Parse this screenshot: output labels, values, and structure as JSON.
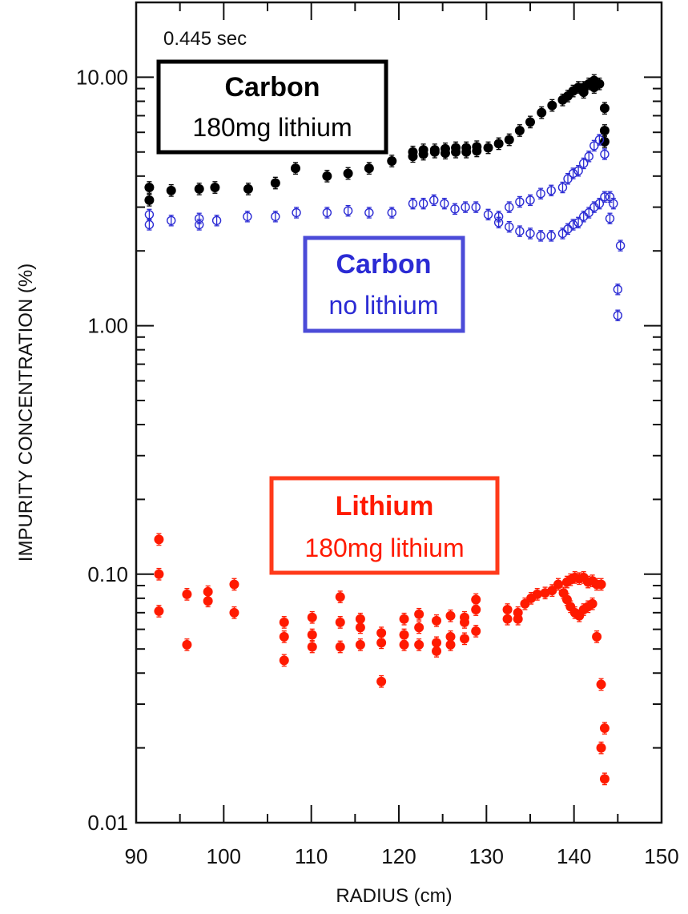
{
  "chart_data": {
    "type": "scatter",
    "title": "",
    "xlabel": "RADIUS (cm)",
    "ylabel": "IMPURITY CONCENTRATION (%)",
    "time_label": "0.445 sec",
    "xlim": [
      90,
      150
    ],
    "ylim": [
      0.01,
      20
    ],
    "yscale": "log",
    "x_ticks": [
      "90",
      "100",
      "110",
      "120",
      "130",
      "140",
      "150"
    ],
    "y_ticks": [
      "0.01",
      "0.10",
      "1.00",
      "10.00"
    ],
    "x_tick_values": [
      90,
      100,
      110,
      120,
      130,
      140,
      150
    ],
    "y_tick_values": [
      0.01,
      0.1,
      1,
      10
    ],
    "grid": false,
    "annotations": [
      {
        "title": "Carbon",
        "subtitle": "180mg lithium",
        "color": "#000000"
      },
      {
        "title": "Carbon",
        "subtitle": "no lithium",
        "color": "#2b2bd4"
      },
      {
        "title": "Lithium",
        "subtitle": "180mg lithium",
        "color": "#ff1a00"
      }
    ],
    "series": [
      {
        "color": "#000000",
        "marker": "filled-circle",
        "points": [
          [
            91.5,
            3.6
          ],
          [
            91.5,
            3.2
          ],
          [
            94,
            3.5
          ],
          [
            97.2,
            3.55
          ],
          [
            99,
            3.6
          ],
          [
            102.8,
            3.55
          ],
          [
            105.9,
            3.75
          ],
          [
            108.2,
            4.3
          ],
          [
            111.8,
            4.0
          ],
          [
            114.2,
            4.1
          ],
          [
            116.6,
            4.3
          ],
          [
            119.2,
            4.6
          ],
          [
            121.6,
            4.8
          ],
          [
            121.6,
            5.0
          ],
          [
            122.8,
            5.1
          ],
          [
            122.8,
            4.9
          ],
          [
            124.1,
            5.0
          ],
          [
            124.1,
            5.1
          ],
          [
            125.3,
            4.95
          ],
          [
            125.3,
            5.15
          ],
          [
            126.5,
            5.0
          ],
          [
            126.5,
            5.2
          ],
          [
            127.7,
            5.0
          ],
          [
            127.7,
            5.2
          ],
          [
            128.9,
            5.05
          ],
          [
            128.9,
            5.25
          ],
          [
            130.2,
            5.2
          ],
          [
            131.4,
            5.4
          ],
          [
            132.6,
            5.6
          ],
          [
            133.8,
            6.1
          ],
          [
            135,
            6.6
          ],
          [
            136.3,
            7.2
          ],
          [
            137.5,
            7.7
          ],
          [
            138.7,
            8.1
          ],
          [
            139.3,
            8.4
          ],
          [
            139.9,
            8.8
          ],
          [
            140.5,
            9.1
          ],
          [
            141.1,
            8.7
          ],
          [
            141.1,
            9.1
          ],
          [
            141.7,
            9.4
          ],
          [
            142.3,
            9.7
          ],
          [
            142.3,
            9.1
          ],
          [
            142.9,
            9.4
          ],
          [
            143.5,
            7.5
          ],
          [
            143.5,
            6.1
          ],
          [
            143.5,
            5.5
          ]
        ]
      },
      {
        "color": "#2b2bd4",
        "marker": "open-circle",
        "points": [
          [
            91.5,
            2.8
          ],
          [
            91.5,
            2.55
          ],
          [
            94,
            2.65
          ],
          [
            97.2,
            2.7
          ],
          [
            97.2,
            2.55
          ],
          [
            99.2,
            2.65
          ],
          [
            102.7,
            2.75
          ],
          [
            105.9,
            2.75
          ],
          [
            108.3,
            2.85
          ],
          [
            111.8,
            2.85
          ],
          [
            114.2,
            2.9
          ],
          [
            116.6,
            2.85
          ],
          [
            119.2,
            2.85
          ],
          [
            121.6,
            3.1
          ],
          [
            122.8,
            3.1
          ],
          [
            124,
            3.2
          ],
          [
            125.2,
            3.1
          ],
          [
            126.4,
            2.95
          ],
          [
            127.6,
            3.0
          ],
          [
            128.8,
            3.0
          ],
          [
            130.2,
            2.8
          ],
          [
            131.4,
            2.75
          ],
          [
            131.4,
            2.6
          ],
          [
            132.6,
            3.0
          ],
          [
            132.6,
            2.5
          ],
          [
            133.8,
            3.15
          ],
          [
            133.8,
            2.4
          ],
          [
            135,
            3.2
          ],
          [
            135,
            2.35
          ],
          [
            136.2,
            3.4
          ],
          [
            136.2,
            2.3
          ],
          [
            137.4,
            3.5
          ],
          [
            137.4,
            2.3
          ],
          [
            138.7,
            3.6
          ],
          [
            138.7,
            2.35
          ],
          [
            139.3,
            3.9
          ],
          [
            139.3,
            2.45
          ],
          [
            139.9,
            4.1
          ],
          [
            139.9,
            2.55
          ],
          [
            140.5,
            4.2
          ],
          [
            140.5,
            2.6
          ],
          [
            141.1,
            4.5
          ],
          [
            141.1,
            2.75
          ],
          [
            141.7,
            4.8
          ],
          [
            141.7,
            2.85
          ],
          [
            142.3,
            5.3
          ],
          [
            142.3,
            3.0
          ],
          [
            142.9,
            5.6
          ],
          [
            142.9,
            3.1
          ],
          [
            143.5,
            4.9
          ],
          [
            143.5,
            3.3
          ],
          [
            144.1,
            3.3
          ],
          [
            144.1,
            2.7
          ],
          [
            144.5,
            3.1
          ],
          [
            145,
            1.4
          ],
          [
            145,
            1.1
          ],
          [
            145.3,
            2.1
          ]
        ]
      },
      {
        "color": "#ff1a00",
        "marker": "filled-circle",
        "points": [
          [
            92.6,
            0.138
          ],
          [
            92.6,
            0.1
          ],
          [
            92.6,
            0.071
          ],
          [
            95.8,
            0.083
          ],
          [
            95.8,
            0.052
          ],
          [
            98.2,
            0.085
          ],
          [
            98.2,
            0.078
          ],
          [
            101.2,
            0.091
          ],
          [
            101.2,
            0.07
          ],
          [
            106.9,
            0.064
          ],
          [
            106.9,
            0.056
          ],
          [
            106.9,
            0.045
          ],
          [
            110.1,
            0.067
          ],
          [
            110.1,
            0.057
          ],
          [
            110.1,
            0.051
          ],
          [
            113.3,
            0.081
          ],
          [
            113.3,
            0.064
          ],
          [
            113.3,
            0.051
          ],
          [
            115.6,
            0.066
          ],
          [
            115.6,
            0.061
          ],
          [
            115.6,
            0.052
          ],
          [
            118,
            0.058
          ],
          [
            118,
            0.053
          ],
          [
            118,
            0.037
          ],
          [
            120.6,
            0.066
          ],
          [
            120.6,
            0.057
          ],
          [
            120.6,
            0.052
          ],
          [
            122.3,
            0.069
          ],
          [
            122.3,
            0.061
          ],
          [
            122.3,
            0.052
          ],
          [
            124.3,
            0.065
          ],
          [
            124.3,
            0.053
          ],
          [
            124.3,
            0.049
          ],
          [
            125.9,
            0.068
          ],
          [
            125.9,
            0.056
          ],
          [
            125.9,
            0.052
          ],
          [
            127.5,
            0.067
          ],
          [
            127.5,
            0.064
          ],
          [
            127.5,
            0.055
          ],
          [
            128.8,
            0.079
          ],
          [
            128.8,
            0.072
          ],
          [
            128.8,
            0.059
          ],
          [
            132.4,
            0.072
          ],
          [
            132.4,
            0.066
          ],
          [
            133.6,
            0.07
          ],
          [
            133.6,
            0.066
          ],
          [
            134.4,
            0.076
          ],
          [
            135.1,
            0.08
          ],
          [
            135.8,
            0.083
          ],
          [
            136.7,
            0.084
          ],
          [
            137.5,
            0.086
          ],
          [
            138.2,
            0.091
          ],
          [
            138.8,
            0.084
          ],
          [
            139.2,
            0.093
          ],
          [
            139.2,
            0.079
          ],
          [
            139.6,
            0.095
          ],
          [
            139.6,
            0.074
          ],
          [
            140.1,
            0.097
          ],
          [
            140.1,
            0.07
          ],
          [
            140.6,
            0.096
          ],
          [
            140.6,
            0.068
          ],
          [
            141.1,
            0.097
          ],
          [
            141.1,
            0.072
          ],
          [
            141.6,
            0.093
          ],
          [
            141.6,
            0.074
          ],
          [
            142.1,
            0.094
          ],
          [
            142.1,
            0.076
          ],
          [
            142.6,
            0.091
          ],
          [
            142.6,
            0.056
          ],
          [
            143.1,
            0.091
          ],
          [
            143.1,
            0.036
          ],
          [
            143.1,
            0.02
          ],
          [
            143.5,
            0.024
          ],
          [
            143.5,
            0.015
          ]
        ]
      }
    ]
  }
}
